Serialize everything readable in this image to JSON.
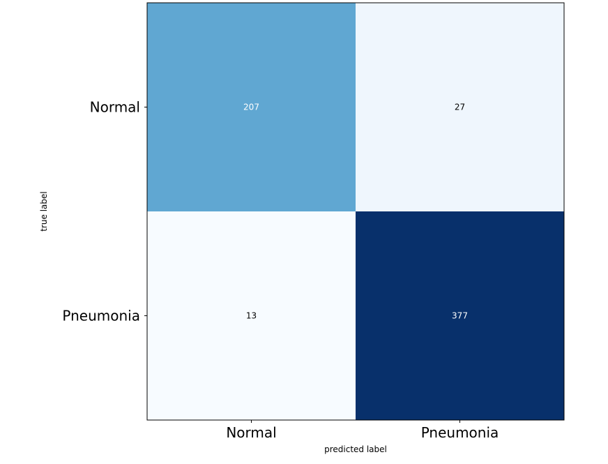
{
  "chart_data": {
    "type": "heatmap",
    "title": "",
    "xlabel": "predicted label",
    "ylabel": "true label",
    "x_categories": [
      "Normal",
      "Pneumonia"
    ],
    "y_categories": [
      "Normal",
      "Pneumonia"
    ],
    "values": [
      [
        207,
        27
      ],
      [
        13,
        377
      ]
    ],
    "colormap": "Blues",
    "value_range": [
      13,
      377
    ],
    "grid": false,
    "colorbar": false,
    "cell_text_colors": {
      "dark": "#ffffff",
      "light": "#000000"
    }
  }
}
